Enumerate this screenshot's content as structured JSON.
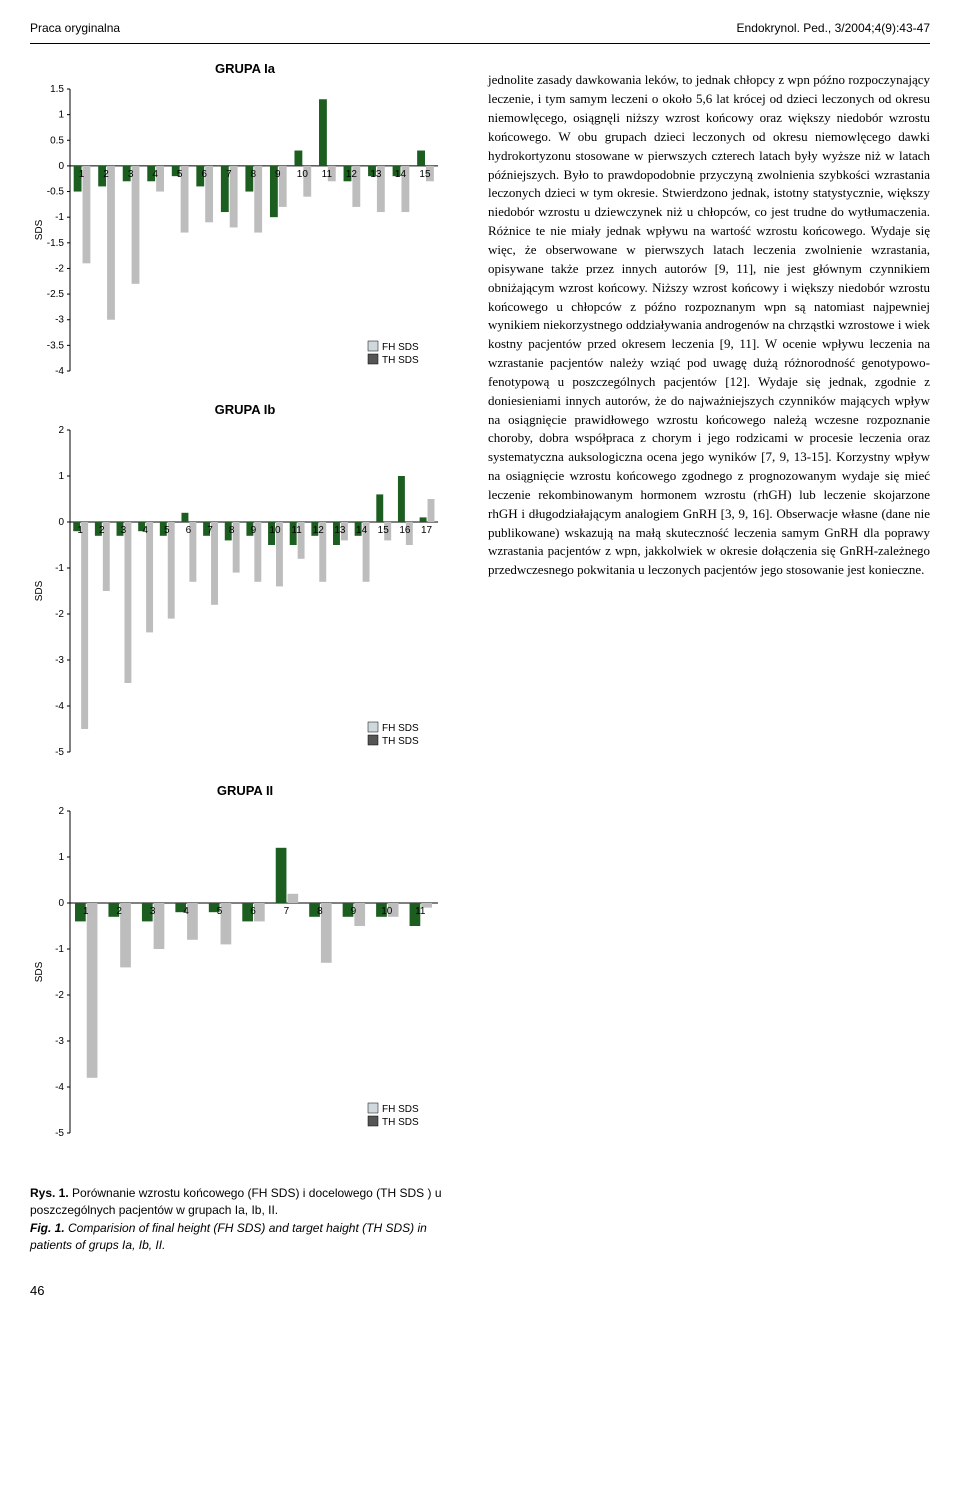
{
  "header": {
    "left": "Praca oryginalna",
    "right": "Endokrynol. Ped., 3/2004;4(9):43-47"
  },
  "charts": [
    {
      "title": "GRUPA Ia",
      "ylim": [
        -4,
        1.5
      ],
      "ytick_step": 0.5,
      "ylabel": "SDS",
      "categories": [
        "1",
        "2",
        "3",
        "4",
        "5",
        "6",
        "7",
        "8",
        "9",
        "10",
        "11",
        "12",
        "13",
        "14",
        "15"
      ],
      "series": [
        {
          "name": "FH SDS",
          "color": "#1b5e20",
          "values": [
            -0.5,
            -0.4,
            -0.3,
            -0.3,
            -0.2,
            -0.4,
            -0.9,
            -0.5,
            -1.0,
            0.3,
            1.3,
            -0.3,
            -0.2,
            -0.2,
            0.3
          ]
        },
        {
          "name": "TH SDS",
          "color": "#bdbdbd",
          "values": [
            -1.9,
            -3.0,
            -2.3,
            -0.5,
            -1.3,
            -1.1,
            -1.2,
            -1.3,
            -0.8,
            -0.6,
            -0.3,
            -0.8,
            -0.9,
            -0.9,
            -0.3
          ]
        }
      ],
      "legend_colors": {
        "FH SDS": "#cfd8dc",
        "TH SDS": "#555555"
      },
      "bg": "#ffffff",
      "axis_color": "#000000",
      "font_color": "#000000",
      "font_size": 10
    },
    {
      "title": "GRUPA Ib",
      "ylim": [
        -5,
        2
      ],
      "ytick_step": 1,
      "ylabel": "SDS",
      "categories": [
        "1",
        "2",
        "3",
        "4",
        "5",
        "6",
        "7",
        "8",
        "9",
        "10",
        "11",
        "12",
        "13",
        "14",
        "15",
        "16",
        "17"
      ],
      "series": [
        {
          "name": "FH SDS",
          "color": "#1b5e20",
          "values": [
            -0.2,
            -0.3,
            -0.3,
            -0.2,
            -0.3,
            0.2,
            -0.3,
            -0.4,
            -0.3,
            -0.5,
            -0.5,
            -0.3,
            -0.5,
            -0.3,
            0.6,
            1.0,
            0.1
          ]
        },
        {
          "name": "TH SDS",
          "color": "#bdbdbd",
          "values": [
            -4.5,
            -1.5,
            -3.5,
            -2.4,
            -2.1,
            -1.3,
            -1.8,
            -1.1,
            -1.3,
            -1.4,
            -0.8,
            -1.3,
            -0.4,
            -1.3,
            -0.4,
            -0.5,
            0.5
          ]
        }
      ],
      "legend_colors": {
        "FH SDS": "#cfd8dc",
        "TH SDS": "#555555"
      },
      "bg": "#ffffff",
      "axis_color": "#000000",
      "font_color": "#000000",
      "font_size": 10
    },
    {
      "title": "GRUPA II",
      "ylim": [
        -5,
        2
      ],
      "ytick_step": 1,
      "ylabel": "SDS",
      "categories": [
        "1",
        "2",
        "3",
        "4",
        "5",
        "6",
        "7",
        "8",
        "9",
        "10",
        "11"
      ],
      "series": [
        {
          "name": "FH SDS",
          "color": "#1b5e20",
          "values": [
            -0.4,
            -0.3,
            -0.4,
            -0.2,
            -0.2,
            -0.4,
            1.2,
            -0.3,
            -0.3,
            -0.3,
            -0.5
          ]
        },
        {
          "name": "TH SDS",
          "color": "#bdbdbd",
          "values": [
            -3.8,
            -1.4,
            -1.0,
            -0.8,
            -0.9,
            -0.4,
            0.2,
            -1.3,
            -0.5,
            -0.3,
            -0.1
          ]
        }
      ],
      "legend_colors": {
        "FH SDS": "#cfd8dc",
        "TH SDS": "#555555"
      },
      "bg": "#ffffff",
      "axis_color": "#000000",
      "font_color": "#000000",
      "font_size": 10
    }
  ],
  "caption": {
    "line1_bold": "Rys. 1.",
    "line1_rest": " Porównanie wzrostu końcowego (FH SDS) i docelowego (TH SDS ) u poszczególnych pacjentów w grupach Ia, Ib, II.",
    "line2_bold": "Fig. 1.",
    "line2_rest": " Comparision of final height  (FH SDS) and target haight (TH SDS) in patients of grups Ia, Ib, II."
  },
  "body_text": "jednolite zasady dawkowania leków, to jednak chłopcy z wpn późno rozpoczynający leczenie, i tym samym leczeni o około 5,6 lat krócej od dzieci leczonych od okresu niemowlęcego, osiągnęli niższy wzrost końcowy oraz większy niedobór wzrostu końcowego. W obu grupach dzieci leczonych od okresu niemowlęcego dawki hydrokortyzonu stosowane w pierwszych czterech latach były wyższe niż w latach późniejszych. Było to prawdopodobnie przyczyną zwolnienia szybkości wzrastania leczonych dzieci w tym okresie. Stwierdzono jednak, istotny statystycznie, większy niedobór wzrostu u dziewczynek niż u chłopców, co jest trudne do wytłumaczenia. Różnice te nie miały jednak wpływu na wartość wzrostu końcowego. Wydaje się więc, że obserwowane w pierwszych latach leczenia zwolnienie wzrastania, opisywane także przez innych autorów [9, 11], nie jest głównym czynnikiem obniżającym wzrost końcowy. Niższy wzrost końcowy i większy niedobór wzrostu końcowego u chłopców z późno rozpoznanym wpn są natomiast najpewniej wynikiem niekorzystnego oddziaływania androgenów na chrząstki wzrostowe i wiek kostny pacjentów przed okresem leczenia [9, 11]. W ocenie wpływu leczenia na wzrastanie pacjentów należy wziąć pod uwagę dużą różnorodność genotypowo-fenotypową u poszczególnych pacjentów [12]. Wydaje się jednak, zgodnie z doniesieniami innych autorów, że do najważniejszych czynników mających wpływ na osiągnięcie prawidłowego wzrostu końcowego należą wczesne rozpoznanie choroby, dobra współpraca z chorym i jego rodzicami w procesie leczenia oraz systematyczna auksologiczna ocena jego wyników [7, 9, 13-15]. Korzystny wpływ na osiągnięcie wzrostu końcowego zgodnego z prognozowanym wydaje się mieć leczenie rekombinowanym hormonem wzrostu (rhGH) lub leczenie skojarzone rhGH i długodziałającym analogiem GnRH [3, 9, 16]. Obserwacje własne (dane nie publikowane) wskazują na małą skuteczność leczenia samym GnRH dla poprawy wzrastania pacjentów z wpn, jakkolwiek w okresie dołączenia się GnRH-zależnego przedwczesnego pokwitania u leczonych pacjentów jego stosowanie jest konieczne.",
  "page_number": "46"
}
